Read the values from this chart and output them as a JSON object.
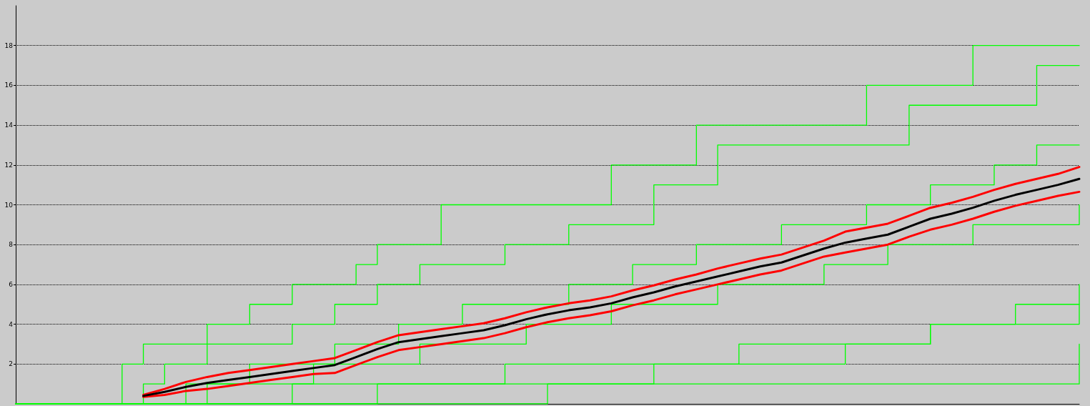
{
  "chart_data": {
    "type": "step",
    "categories": [
      null,
      null,
      null,
      null,
      null,
      null,
      null,
      null,
      null,
      null,
      null,
      null,
      null,
      null,
      null,
      null,
      null,
      null,
      null,
      null,
      null,
      null,
      null,
      null,
      null,
      null,
      null,
      null,
      null,
      null,
      null,
      null,
      null,
      null,
      null,
      null,
      null,
      null,
      null,
      null,
      null,
      null,
      null,
      null,
      null,
      null,
      null,
      null,
      null,
      null,
      null
    ],
    "ylim": [
      0,
      20
    ],
    "yticks": [
      2,
      4,
      6,
      8,
      10,
      12,
      14,
      16,
      18
    ],
    "grid": "y",
    "tick_labels": "y",
    "marker": "none",
    "line_style": "solid",
    "series": [
      {
        "color": "#00ff00",
        "values": [
          0,
          0,
          0,
          0,
          0,
          2,
          3,
          3,
          3,
          4,
          4,
          5,
          5,
          6,
          6,
          6,
          7,
          8,
          8,
          8,
          10,
          10,
          10,
          10,
          10,
          10,
          10,
          10,
          12,
          12,
          12,
          12,
          14,
          14,
          14,
          14,
          14,
          14,
          14,
          14,
          16,
          16,
          16,
          16,
          16,
          18,
          18,
          18,
          18,
          18,
          18
        ]
      },
      {
        "color": "#00ff00",
        "values": [
          0,
          0,
          0,
          0,
          0,
          0,
          1,
          2,
          2,
          3,
          3,
          3,
          3,
          4,
          4,
          5,
          5,
          6,
          6,
          7,
          7,
          7,
          7,
          8,
          8,
          8,
          9,
          9,
          9,
          9,
          11,
          11,
          11,
          13,
          13,
          13,
          13,
          13,
          13,
          13,
          13,
          13,
          15,
          15,
          15,
          15,
          15,
          15,
          17,
          17,
          17
        ]
      },
      {
        "color": "#00ff00",
        "values": [
          0,
          0,
          0,
          0,
          0,
          0,
          0,
          0,
          1,
          1,
          1,
          2,
          2,
          2,
          2,
          3,
          3,
          3,
          4,
          4,
          4,
          5,
          5,
          5,
          5,
          5,
          6,
          6,
          6,
          7,
          7,
          7,
          8,
          8,
          8,
          8,
          9,
          9,
          9,
          9,
          10,
          10,
          10,
          11,
          11,
          11,
          12,
          12,
          13,
          13,
          13
        ]
      },
      {
        "color": "#00ff00",
        "values": [
          0,
          0,
          0,
          0,
          0,
          0,
          0,
          0,
          0,
          1,
          1,
          1,
          1,
          1,
          2,
          2,
          2,
          2,
          2,
          3,
          3,
          3,
          3,
          3,
          4,
          4,
          4,
          4,
          5,
          5,
          5,
          5,
          5,
          6,
          6,
          6,
          6,
          6,
          7,
          7,
          7,
          8,
          8,
          8,
          8,
          9,
          9,
          9,
          9,
          9,
          10
        ]
      },
      {
        "color": "#00ff00",
        "values": [
          0,
          0,
          0,
          0,
          0,
          0,
          0,
          0,
          0,
          0,
          0,
          0,
          0,
          1,
          1,
          1,
          1,
          1,
          1,
          1,
          1,
          1,
          1,
          2,
          2,
          2,
          2,
          2,
          2,
          2,
          2,
          2,
          2,
          2,
          3,
          3,
          3,
          3,
          3,
          3,
          3,
          3,
          3,
          4,
          4,
          4,
          4,
          5,
          5,
          5,
          5
        ]
      },
      {
        "color": "#00ff00",
        "values": [
          0,
          0,
          0,
          0,
          0,
          0,
          0,
          0,
          0,
          0,
          0,
          0,
          0,
          0,
          0,
          0,
          0,
          0,
          0,
          0,
          0,
          0,
          0,
          0,
          0,
          1,
          1,
          1,
          1,
          1,
          1,
          1,
          1,
          1,
          1,
          1,
          1,
          1,
          1,
          1,
          1,
          1,
          1,
          1,
          1,
          1,
          1,
          1,
          1,
          1,
          3
        ]
      },
      {
        "color": "#00ff00",
        "values": [
          0,
          0,
          0,
          0,
          0,
          0,
          0,
          0,
          0,
          0,
          0,
          0,
          0,
          0,
          0,
          0,
          0,
          1,
          1,
          1,
          1,
          1,
          1,
          1,
          1,
          1,
          1,
          1,
          1,
          1,
          2,
          2,
          2,
          2,
          2,
          2,
          2,
          2,
          2,
          3,
          3,
          3,
          3,
          4,
          4,
          4,
          4,
          4,
          4,
          4,
          6
        ]
      },
      {
        "type": "line",
        "color": "#ff0000",
        "values": [
          null,
          null,
          null,
          null,
          null,
          null,
          0.45,
          0.75,
          1.1,
          1.35,
          1.55,
          1.7,
          1.85,
          2.0,
          2.15,
          2.3,
          2.7,
          3.1,
          3.45,
          3.6,
          3.75,
          3.9,
          4.05,
          4.3,
          4.6,
          4.85,
          5.05,
          5.2,
          5.4,
          5.7,
          5.95,
          6.25,
          6.5,
          6.8,
          7.05,
          7.3,
          7.5,
          7.85,
          8.2,
          8.65,
          8.85,
          9.05,
          9.45,
          9.85,
          10.1,
          10.4,
          10.75,
          11.05,
          11.3,
          11.55,
          11.9
        ]
      },
      {
        "type": "line",
        "color": "#ff0000",
        "values": [
          null,
          null,
          null,
          null,
          null,
          null,
          0.35,
          0.45,
          0.65,
          0.75,
          0.9,
          1.05,
          1.2,
          1.35,
          1.5,
          1.55,
          1.95,
          2.35,
          2.7,
          2.85,
          3.0,
          3.15,
          3.3,
          3.55,
          3.85,
          4.1,
          4.3,
          4.45,
          4.65,
          4.95,
          5.2,
          5.5,
          5.75,
          6.0,
          6.25,
          6.5,
          6.7,
          7.05,
          7.4,
          7.6,
          7.8,
          8.0,
          8.4,
          8.75,
          9.0,
          9.3,
          9.65,
          9.95,
          10.2,
          10.45,
          10.65
        ]
      },
      {
        "type": "line",
        "color": "#000000",
        "values": [
          null,
          null,
          null,
          null,
          null,
          null,
          0.4,
          0.6,
          0.85,
          1.05,
          1.2,
          1.35,
          1.5,
          1.65,
          1.8,
          1.95,
          2.35,
          2.75,
          3.1,
          3.25,
          3.4,
          3.55,
          3.7,
          3.95,
          4.25,
          4.5,
          4.7,
          4.85,
          5.05,
          5.35,
          5.6,
          5.9,
          6.15,
          6.4,
          6.65,
          6.9,
          7.1,
          7.45,
          7.8,
          8.1,
          8.3,
          8.5,
          8.9,
          9.3,
          9.55,
          9.85,
          10.2,
          10.5,
          10.75,
          11.0,
          11.3
        ]
      }
    ]
  }
}
